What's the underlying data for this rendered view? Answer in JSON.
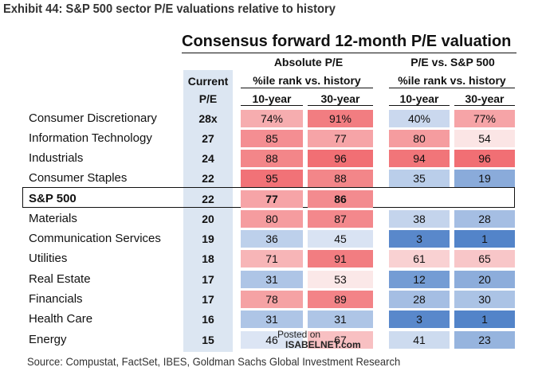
{
  "exhibit_title": "Exhibit 44: S&P 500 sector P/E valuations relative to history",
  "table_title": "Consensus forward 12-month P/E valuation",
  "headers": {
    "current_line1": "Current",
    "current_line2": "P/E",
    "absolute_group": "Absolute P/E",
    "relative_group": "P/E vs. S&P 500",
    "rank_abs": "%ile rank vs. history",
    "rank_rel": "%ile rank vs. history",
    "col_10y_abs": "10-year",
    "col_30y_abs": "30-year",
    "col_10y_rel": "10-year",
    "col_30y_rel": "30-year"
  },
  "rows": [
    {
      "name": "Consumer Discretionary",
      "pe": "28x",
      "abs10": "74%",
      "abs30": "91%",
      "rel10": "40%",
      "rel30": "77%"
    },
    {
      "name": "Information Technology",
      "pe": "27",
      "abs10": "85",
      "abs30": "77",
      "rel10": "80",
      "rel30": "54"
    },
    {
      "name": "Industrials",
      "pe": "24",
      "abs10": "88",
      "abs30": "96",
      "rel10": "94",
      "rel30": "96"
    },
    {
      "name": "Consumer Staples",
      "pe": "22",
      "abs10": "95",
      "abs30": "88",
      "rel10": "35",
      "rel30": "19"
    },
    {
      "name": "S&P 500",
      "pe": "22",
      "abs10": "77",
      "abs30": "86",
      "rel10": "",
      "rel30": ""
    },
    {
      "name": "Materials",
      "pe": "20",
      "abs10": "80",
      "abs30": "87",
      "rel10": "38",
      "rel30": "28"
    },
    {
      "name": "Communication Services",
      "pe": "19",
      "abs10": "36",
      "abs30": "45",
      "rel10": "3",
      "rel30": "1"
    },
    {
      "name": "Utilities",
      "pe": "18",
      "abs10": "71",
      "abs30": "91",
      "rel10": "61",
      "rel30": "65"
    },
    {
      "name": "Real Estate",
      "pe": "17",
      "abs10": "31",
      "abs30": "53",
      "rel10": "12",
      "rel30": "20"
    },
    {
      "name": "Financials",
      "pe": "17",
      "abs10": "78",
      "abs30": "89",
      "rel10": "28",
      "rel30": "30"
    },
    {
      "name": "Health Care",
      "pe": "16",
      "abs10": "31",
      "abs30": "31",
      "rel10": "3",
      "rel30": "1"
    },
    {
      "name": "Energy",
      "pe": "15",
      "abs10": "46",
      "abs30": "67",
      "rel10": "41",
      "rel30": "23"
    }
  ],
  "source": "Source: Compustat, FactSet, IBES, Goldman Sachs Global Investment Research",
  "watermark": {
    "line1": "Posted on",
    "line2": "ISABELNET.com"
  },
  "colors": {
    "current_col_bg": "#dce6f2"
  }
}
